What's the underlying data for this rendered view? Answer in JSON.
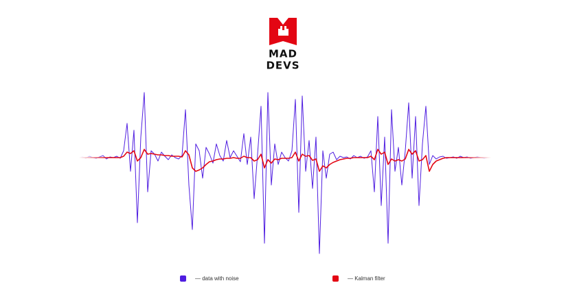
{
  "brand": {
    "line1": "MAD",
    "line2": "DEVS"
  },
  "chart_data": {
    "type": "line",
    "ylim": [
      -150,
      100
    ],
    "series": [
      {
        "name": "— data with noise",
        "color": "#4f1de0",
        "values": [
          0,
          1,
          -1,
          2,
          0,
          -1,
          1,
          3,
          -2,
          1,
          0,
          2,
          -1,
          10,
          50,
          -20,
          40,
          -95,
          30,
          95,
          -50,
          10,
          5,
          -5,
          8,
          2,
          -3,
          4,
          0,
          -2,
          3,
          70,
          -40,
          -105,
          20,
          10,
          -30,
          15,
          5,
          -8,
          20,
          3,
          -5,
          25,
          0,
          10,
          2,
          -6,
          35,
          -10,
          30,
          -60,
          5,
          75,
          -125,
          95,
          -40,
          20,
          -10,
          8,
          0,
          -5,
          10,
          85,
          -80,
          90,
          -20,
          25,
          -45,
          30,
          -140,
          10,
          -30,
          5,
          8,
          -3,
          2,
          0,
          1,
          -2,
          3,
          0,
          2,
          -1,
          1,
          10,
          -50,
          60,
          -70,
          30,
          -125,
          70,
          -20,
          15,
          -40,
          10,
          80,
          -30,
          60,
          -70,
          20,
          75,
          -10,
          3,
          -2,
          1,
          2,
          -1,
          0,
          1,
          -1,
          2,
          0,
          1,
          -1,
          0,
          1,
          0,
          -1,
          0,
          0
        ]
      },
      {
        "name": "— Kalman filter",
        "color": "#e30613",
        "values": [
          0,
          0,
          0,
          0,
          0,
          0,
          0,
          0,
          0,
          0,
          0,
          0,
          0,
          2,
          8,
          6,
          10,
          -5,
          0,
          12,
          5,
          6,
          5,
          4,
          4,
          3,
          3,
          2,
          2,
          2,
          1,
          10,
          4,
          -15,
          -20,
          -18,
          -15,
          -10,
          -6,
          -5,
          -3,
          -2,
          -2,
          -1,
          -1,
          0,
          -1,
          -1,
          2,
          0,
          0,
          -5,
          -3,
          5,
          -15,
          -3,
          -8,
          -2,
          -3,
          -1,
          -1,
          -1,
          0,
          8,
          -5,
          5,
          2,
          3,
          -4,
          -2,
          -20,
          -12,
          -15,
          -10,
          -7,
          -5,
          -3,
          -2,
          -1,
          -1,
          0,
          0,
          0,
          0,
          0,
          2,
          -3,
          12,
          5,
          8,
          -10,
          -2,
          -5,
          -3,
          -5,
          -2,
          12,
          5,
          10,
          -5,
          -3,
          3,
          -20,
          -10,
          -5,
          -3,
          -1,
          0,
          0,
          0,
          0,
          0,
          0,
          0,
          0,
          0,
          0,
          0,
          0,
          0,
          0
        ]
      }
    ]
  }
}
